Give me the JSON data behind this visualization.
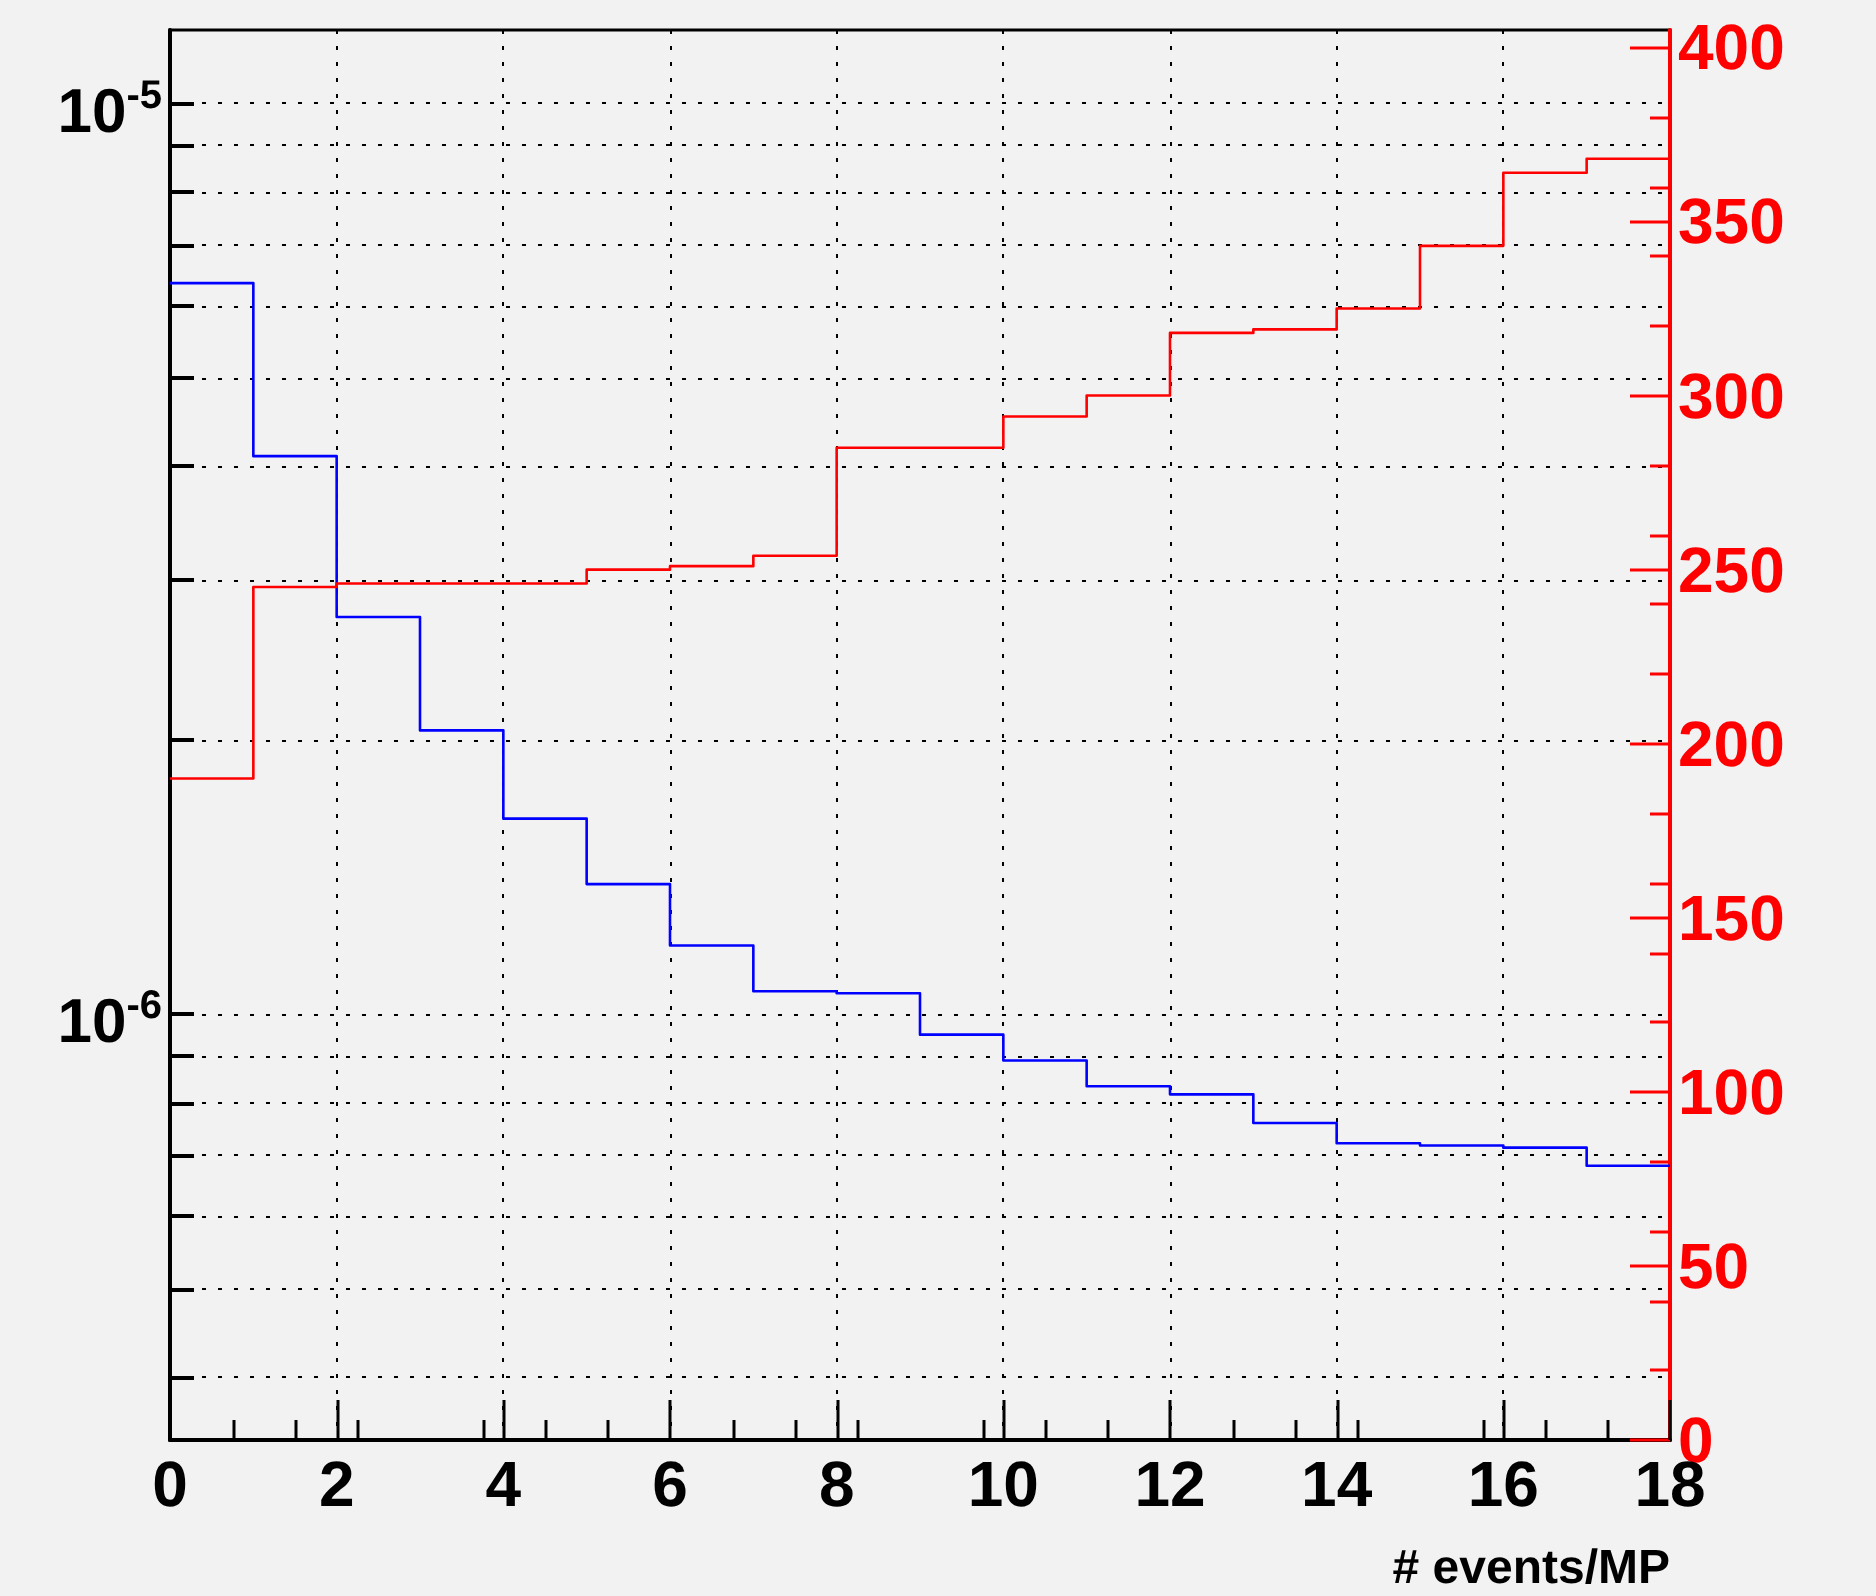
{
  "chart_data": {
    "type": "histogram",
    "xlabel": "# events/MP",
    "bins": [
      0,
      1,
      2,
      3,
      4,
      5,
      6,
      7,
      8,
      9,
      10,
      11,
      12,
      13,
      14,
      15,
      16,
      17,
      18
    ],
    "series": [
      {
        "color": "#0000ff",
        "values": [
          6.35e-06,
          4.1e-06,
          2.73e-06,
          2.05e-06,
          1.64e-06,
          1.39e-06,
          1.19e-06,
          1.06e-06,
          1.055e-06,
          9.5e-07,
          8.9e-07,
          8.34e-07,
          8.17e-07,
          7.6e-07,
          7.22e-07,
          7.18e-07,
          7.14e-07,
          6.82e-07
        ]
      },
      {
        "color": "#ff0000",
        "axis": "y2",
        "values": [
          190,
          245,
          246,
          246,
          246,
          250,
          251,
          254,
          285,
          285,
          294,
          300,
          318,
          319,
          325,
          343,
          364,
          368
        ]
      }
    ],
    "xlim": [
      0,
      18
    ],
    "xticks": [
      0,
      2,
      4,
      6,
      8,
      10,
      12,
      14,
      16,
      18
    ],
    "log": "y",
    "ylim": [
      3.41e-07,
      1.204e-05
    ],
    "yticks": [
      {
        "value": 4e-07,
        "label": null
      },
      {
        "value": 5e-07,
        "label": null
      },
      {
        "value": 6e-07,
        "label": null
      },
      {
        "value": 7e-07,
        "label": null
      },
      {
        "value": 8e-07,
        "label": null
      },
      {
        "value": 9e-07,
        "label": null
      },
      {
        "value": 1e-06,
        "label": "10$^{-6}$"
      },
      {
        "value": 2e-06,
        "label": null
      },
      {
        "value": 3e-06,
        "label": null
      },
      {
        "value": 4e-06,
        "label": null
      },
      {
        "value": 5e-06,
        "label": null
      },
      {
        "value": 6e-06,
        "label": null
      },
      {
        "value": 7e-06,
        "label": null
      },
      {
        "value": 8e-06,
        "label": null
      },
      {
        "value": 9e-06,
        "label": null
      },
      {
        "value": 1e-05,
        "label": "10$^{-5}$"
      }
    ],
    "y2lim": [
      0,
      405
    ],
    "y2ticks": [
      0,
      50,
      100,
      150,
      200,
      250,
      300,
      350,
      400
    ],
    "grid": true,
    "marker": "none"
  }
}
